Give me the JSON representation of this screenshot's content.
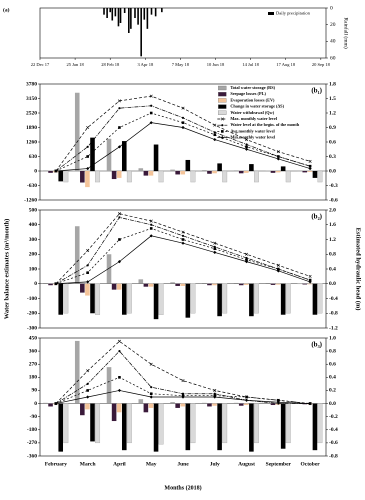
{
  "chart_data": [
    {
      "type": "bar",
      "panel_label": "(a)",
      "legend": "Daily precipitation",
      "legend_position": "upper right",
      "x": [
        "2018-02-22",
        "2018-02-25",
        "2018-02-28",
        "2018-03-02",
        "2018-03-05",
        "2018-03-08",
        "2018-03-10",
        "2018-03-14",
        "2018-03-18",
        "2018-03-20",
        "2018-03-24",
        "2018-03-27",
        "2018-03-30",
        "2018-04-02",
        "2018-04-05",
        "2018-04-09",
        "2018-04-13",
        "2018-04-19"
      ],
      "values": [
        8,
        12,
        5,
        15,
        10,
        22,
        18,
        6,
        30,
        25,
        12,
        20,
        58,
        14,
        25,
        8,
        10,
        5
      ],
      "color": "#000000",
      "xlim": [
        "2017-12-22",
        "2018-09-25"
      ],
      "xticks": [
        {
          "value": "2017-12-22",
          "label": "22 Dec 17"
        },
        {
          "value": "2018-01-25",
          "label": "25 Jan 18"
        },
        {
          "value": "2018-02-28",
          "label": "28 Feb 18"
        },
        {
          "value": "2018-04-03",
          "label": "3 Apr 18"
        },
        {
          "value": "2018-05-07",
          "label": "7 May 18"
        },
        {
          "value": "2018-06-10",
          "label": "10 Jun 18"
        },
        {
          "value": "2018-07-14",
          "label": "14 Jul 18"
        },
        {
          "value": "2018-08-17",
          "label": "17 Aug 18"
        },
        {
          "value": "2018-09-20",
          "label": "20 Sep 18"
        }
      ],
      "ylim": [
        0,
        60
      ],
      "yticks": [
        0,
        20,
        40,
        60
      ],
      "y_inverted": true,
      "ylabel": "Rainfall (mm)"
    },
    {
      "type": "combo",
      "panel_label": "(b₁)",
      "legend_position": "upper right",
      "ylim": [
        -1260,
        3780
      ],
      "yticks": [
        -1260,
        -630,
        0,
        630,
        1260,
        1890,
        2520,
        3150,
        3780
      ],
      "y2lim": [
        -0.6,
        1.8
      ],
      "y2ticks": [
        -0.6,
        -0.3,
        {
          "value": 0,
          "label": "0.0"
        },
        0.3,
        0.6,
        0.9,
        1.2,
        1.5,
        1.8
      ],
      "series": [
        {
          "name": "Total water storage (RS)",
          "color": "#a6a6a6",
          "values": [
            30,
            3400,
            1400,
            120,
            60,
            40,
            30,
            20,
            0
          ]
        },
        {
          "name": "Seepage losses (PL)",
          "color": "#3a1a3a",
          "values": [
            -80,
            -500,
            -350,
            -200,
            -150,
            -120,
            -100,
            -80,
            -60
          ]
        },
        {
          "name": "Evaporation losses (EV)",
          "color": "#f4c49a",
          "values": [
            -60,
            -700,
            -300,
            -200,
            -150,
            -100,
            -80,
            -60,
            -40
          ]
        },
        {
          "name": "Change in water storage (ΔS)",
          "color": "#000000",
          "values": [
            -450,
            1450,
            1300,
            1150,
            480,
            330,
            300,
            200,
            -300
          ]
        },
        {
          "name": "Water withdrawal (Qw)",
          "color": "#d9d9d9",
          "values": [
            -480,
            -480,
            -480,
            -480,
            -480,
            -480,
            -480,
            -480,
            -480
          ]
        },
        {
          "name": "Max. monthly water level",
          "color": "#000000",
          "axis": "y2",
          "dash": "3 2",
          "marker": "x",
          "values": [
            0,
            0.9,
            1.45,
            1.55,
            1.3,
            0.95,
            0.65,
            0.4,
            0.2
          ]
        },
        {
          "name": "Water level at the begin. of the month",
          "color": "#000000",
          "axis": "y2",
          "dash": "4 1 1 1",
          "marker": "circle",
          "values": [
            0,
            0.5,
            1.3,
            1.35,
            1.1,
            0.8,
            0.55,
            0.3,
            0.1
          ]
        },
        {
          "name": "Avg.monthly water level",
          "color": "#000000",
          "axis": "y2",
          "dash": "2 2",
          "marker": "square",
          "values": [
            0,
            0.3,
            0.9,
            1.2,
            1.0,
            0.75,
            0.5,
            0.3,
            0.1
          ]
        },
        {
          "name": "Min.monthly water level",
          "color": "#000000",
          "axis": "y2",
          "dash": "none",
          "marker": "diamond",
          "values": [
            0,
            0.05,
            0.5,
            1.0,
            0.9,
            0.65,
            0.45,
            0.25,
            0.05
          ]
        }
      ]
    },
    {
      "type": "combo",
      "panel_label": "(b₂)",
      "ylabel": "Water balance estimates (m³/month)",
      "y2label": "Estimated hydraulic head (m)",
      "ylim": [
        -300,
        500
      ],
      "yticks": [
        -300,
        -200,
        -100,
        0,
        100,
        200,
        300,
        400,
        500
      ],
      "y2lim": [
        -1.2,
        2.0
      ],
      "y2ticks": [
        -1.2,
        -0.8,
        -0.4,
        {
          "value": 0,
          "label": "0.0"
        },
        0.4,
        0.8,
        1.2,
        1.6,
        {
          "value": 2,
          "label": "2.0"
        }
      ],
      "series": [
        {
          "color": "#a6a6a6",
          "values": [
            5,
            390,
            200,
            30,
            10,
            5,
            5,
            5,
            0
          ]
        },
        {
          "color": "#3a1a3a",
          "values": [
            -10,
            -60,
            -40,
            -20,
            -15,
            -10,
            -10,
            -8,
            -5
          ]
        },
        {
          "color": "#f4c49a",
          "values": [
            -5,
            -80,
            -40,
            -20,
            -15,
            -10,
            -8,
            -6,
            -4
          ]
        },
        {
          "color": "#000000",
          "values": [
            -210,
            -200,
            -210,
            -240,
            -230,
            -220,
            -220,
            -210,
            -210
          ]
        },
        {
          "color": "#d9d9d9",
          "values": [
            -200,
            -210,
            -200,
            -210,
            -200,
            -200,
            -200,
            -200,
            -200
          ]
        },
        {
          "color": "#000000",
          "axis": "y2",
          "dash": "3 2",
          "marker": "x",
          "values": [
            0,
            0.9,
            1.9,
            1.7,
            1.4,
            1.1,
            0.8,
            0.5,
            0.2
          ]
        },
        {
          "color": "#000000",
          "axis": "y2",
          "dash": "4 1 1 1",
          "marker": "circle",
          "values": [
            0,
            0.5,
            1.8,
            1.6,
            1.3,
            1.0,
            0.7,
            0.4,
            0.1
          ]
        },
        {
          "color": "#000000",
          "axis": "y2",
          "dash": "2 2",
          "marker": "square",
          "values": [
            0,
            0.3,
            1.2,
            1.5,
            1.2,
            0.95,
            0.65,
            0.4,
            0.1
          ]
        },
        {
          "color": "#000000",
          "axis": "y2",
          "dash": "none",
          "marker": "diamond",
          "values": [
            0,
            0.05,
            0.6,
            1.3,
            1.1,
            0.85,
            0.6,
            0.35,
            0.05
          ]
        }
      ]
    },
    {
      "type": "combo",
      "panel_label": "(b₃)",
      "xlabel": "Months (2018)",
      "categories": [
        "February",
        "March",
        "April",
        "May",
        "June",
        "July",
        "August",
        "September",
        "October"
      ],
      "ylim": [
        -360,
        450
      ],
      "yticks": [
        -360,
        -270,
        -180,
        -90,
        0,
        90,
        180,
        270,
        360,
        450
      ],
      "y2lim": [
        -0.8,
        1.0
      ],
      "y2ticks": [
        -0.8,
        -0.6,
        -0.4,
        -0.2,
        {
          "value": 0,
          "label": "0.0"
        },
        0.2,
        0.4,
        0.6,
        0.8,
        {
          "value": 1,
          "label": "1.0"
        }
      ],
      "series": [
        {
          "color": "#a6a6a6",
          "values": [
            5,
            430,
            250,
            30,
            10,
            5,
            5,
            5,
            0
          ]
        },
        {
          "color": "#3a1a3a",
          "values": [
            -20,
            -80,
            -120,
            -60,
            -30,
            -20,
            -15,
            -10,
            -5
          ]
        },
        {
          "color": "#f4c49a",
          "values": [
            -5,
            -40,
            -60,
            -30,
            -20,
            -15,
            -10,
            -8,
            -5
          ]
        },
        {
          "color": "#000000",
          "values": [
            -330,
            -260,
            -320,
            -330,
            -320,
            -320,
            -330,
            -310,
            -320
          ]
        },
        {
          "color": "#d9d9d9",
          "values": [
            -270,
            -270,
            -270,
            -280,
            -270,
            -270,
            -270,
            -270,
            -270
          ]
        },
        {
          "color": "#000000",
          "axis": "y2",
          "dash": "3 2",
          "marker": "x",
          "values": [
            0,
            0.5,
            0.95,
            0.6,
            0.35,
            0.2,
            0.1,
            0.05,
            0
          ]
        },
        {
          "color": "#000000",
          "axis": "y2",
          "dash": "4 1 1 1",
          "marker": "circle",
          "values": [
            0,
            0.3,
            0.8,
            0.25,
            0.15,
            0.15,
            0.05,
            0,
            0
          ]
        },
        {
          "color": "#000000",
          "axis": "y2",
          "dash": "2 2",
          "marker": "square",
          "values": [
            0,
            0.2,
            0.4,
            0.15,
            0.12,
            0.12,
            0.1,
            0.05,
            0
          ]
        },
        {
          "color": "#000000",
          "axis": "y2",
          "dash": "none",
          "marker": "diamond",
          "values": [
            0,
            0.1,
            0.2,
            0.1,
            0.1,
            0.1,
            0.05,
            0.02,
            0
          ]
        }
      ]
    }
  ]
}
